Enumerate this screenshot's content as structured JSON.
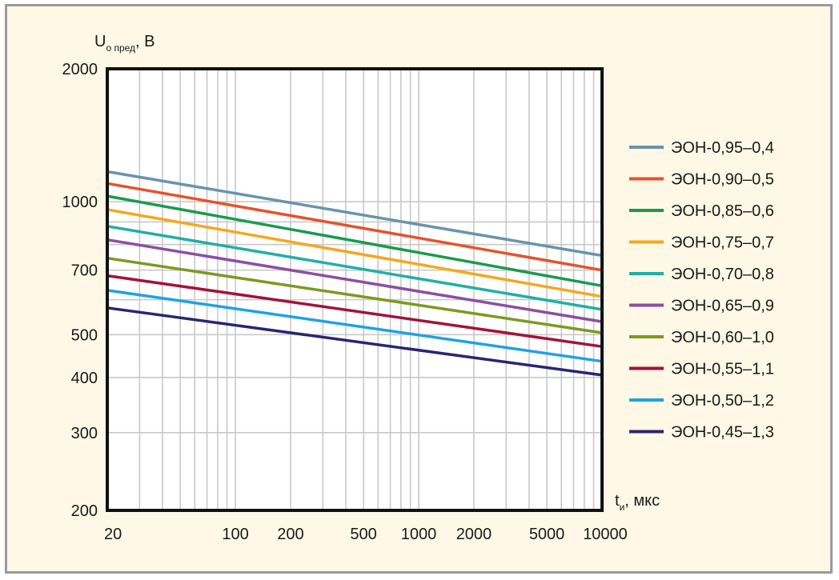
{
  "chart_data": {
    "type": "line",
    "xscale": "log",
    "yscale": "log",
    "xlim": [
      20,
      10000
    ],
    "ylim": [
      200,
      2000
    ],
    "grid": true,
    "legend_position": "right",
    "ylabel": {
      "main": "U",
      "sub": "о пред",
      "unit": ", B"
    },
    "xlabel": {
      "main": "t",
      "sub": "и",
      "unit": ", мкс"
    },
    "x_tick_labels": [
      {
        "value": 20,
        "label": "20"
      },
      {
        "value": 100,
        "label": "100"
      },
      {
        "value": 200,
        "label": "200"
      },
      {
        "value": 500,
        "label": "500"
      },
      {
        "value": 1000,
        "label": "1000"
      },
      {
        "value": 2000,
        "label": "2000"
      },
      {
        "value": 5000,
        "label": "5000"
      },
      {
        "value": 10000,
        "label": "10000"
      }
    ],
    "y_tick_labels": [
      {
        "value": 200,
        "label": "200"
      },
      {
        "value": 300,
        "label": "300"
      },
      {
        "value": 400,
        "label": "400"
      },
      {
        "value": 500,
        "label": "500"
      },
      {
        "value": 700,
        "label": "700"
      },
      {
        "value": 1000,
        "label": "1000"
      },
      {
        "value": 2000,
        "label": "2000"
      }
    ],
    "series": [
      {
        "name": "ЭОН-0,95–0,4",
        "color": "#6a93ad",
        "x": [
          20,
          10000
        ],
        "y": [
          1170,
          755
        ]
      },
      {
        "name": "ЭОН-0,90–0,5",
        "color": "#e8512a",
        "x": [
          20,
          10000
        ],
        "y": [
          1100,
          700
        ]
      },
      {
        "name": "ЭОН-0,85–0,6",
        "color": "#1a9a4e",
        "x": [
          20,
          10000
        ],
        "y": [
          1030,
          645
        ]
      },
      {
        "name": "ЭОН-0,75–0,7",
        "color": "#f5a81c",
        "x": [
          20,
          10000
        ],
        "y": [
          960,
          610
        ]
      },
      {
        "name": "ЭОН-0,70–0,8",
        "color": "#1fb0a4",
        "x": [
          20,
          10000
        ],
        "y": [
          880,
          570
        ]
      },
      {
        "name": "ЭОН-0,65–0,9",
        "color": "#8b4fa0",
        "x": [
          20,
          10000
        ],
        "y": [
          820,
          535
        ]
      },
      {
        "name": "ЭОН-0,60–1,0",
        "color": "#7c9a1c",
        "x": [
          20,
          10000
        ],
        "y": [
          745,
          505
        ]
      },
      {
        "name": "ЭОН-0,55–1,1",
        "color": "#a3123a",
        "x": [
          20,
          10000
        ],
        "y": [
          680,
          470
        ]
      },
      {
        "name": "ЭОН-0,50–1,2",
        "color": "#1ea3e0",
        "x": [
          20,
          10000
        ],
        "y": [
          630,
          435
        ]
      },
      {
        "name": "ЭОН-0,45–1,3",
        "color": "#2a2570",
        "x": [
          20,
          10000
        ],
        "y": [
          575,
          405
        ]
      }
    ]
  }
}
